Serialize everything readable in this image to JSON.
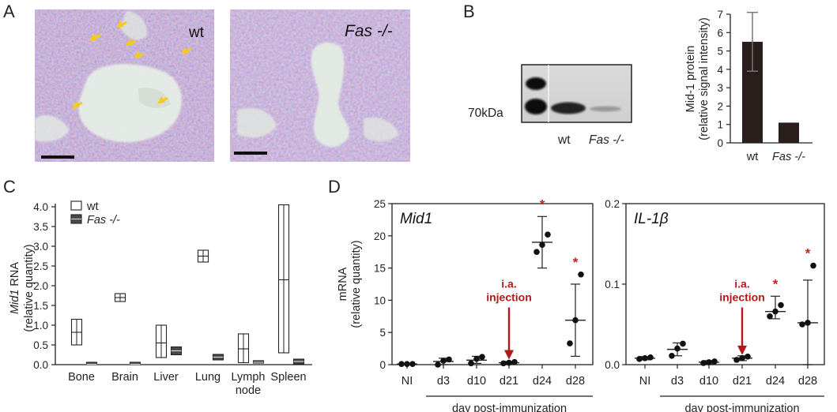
{
  "panels": {
    "A": {
      "letter": "A",
      "label_wt": "wt",
      "label_fas": "Fas -/-"
    },
    "B": {
      "letter": "B",
      "band_label": "70kDa",
      "lane_wt": "wt",
      "lane_fas": "Fas -/-"
    },
    "C": {
      "letter": "C"
    },
    "D": {
      "letter": "D"
    }
  },
  "colors": {
    "bar": "#2a1e1c",
    "box_dark": "#4a4a4a",
    "annot_red": "#b01a1a",
    "arrow_yellow": "#f5cb1a",
    "tissue_purple": "#9b86b8"
  },
  "chart_data": [
    {
      "id": "B",
      "type": "bar",
      "categories": [
        "wt",
        "Fas -/-"
      ],
      "values": [
        5.5,
        1.1
      ],
      "error_low": [
        3.9,
        null
      ],
      "error_high": [
        7.1,
        null
      ],
      "ylabel_line1": "Mid-1 protein",
      "ylabel_line2": "(relative signal intensity)",
      "ylim": [
        0,
        7
      ],
      "yticks": [
        "0",
        "1",
        "2",
        "3",
        "4",
        "5",
        "6",
        "7"
      ]
    },
    {
      "id": "C",
      "type": "box",
      "categories": [
        "Bone",
        "Brain",
        "Liver",
        "Lung",
        "Lymph\nnode",
        "Spleen"
      ],
      "category_labels": [
        "Bone",
        "Brain",
        "Liver",
        "Lung",
        "Lymph",
        "Spleen"
      ],
      "category_label2": "node",
      "ylabel_italic": "Mid1",
      "ylabel_rest": " RNA",
      "ylabel_line2": "(relative quantity)",
      "ylim": [
        0,
        4.0
      ],
      "yticks": [
        "0.0",
        "0.5",
        "1.0",
        "1.5",
        "2.0",
        "2.5",
        "3.0",
        "3.5",
        "4.0"
      ],
      "series": [
        {
          "name": "wt",
          "boxes": [
            {
              "q1": 0.5,
              "median": 0.82,
              "q3": 1.15
            },
            {
              "q1": 1.6,
              "median": 1.7,
              "q3": 1.8
            },
            {
              "q1": 0.18,
              "median": 0.55,
              "q3": 1.0
            },
            {
              "q1": 2.6,
              "median": 2.75,
              "q3": 2.9
            },
            {
              "q1": 0.05,
              "median": 0.4,
              "q3": 0.78
            },
            {
              "q1": 0.3,
              "median": 2.15,
              "q3": 4.05
            }
          ]
        },
        {
          "name": "Fas -/-",
          "boxes": [
            {
              "q1": 0.0,
              "median": 0.01,
              "q3": 0.02
            },
            {
              "q1": 0.0,
              "median": 0.01,
              "q3": 0.04
            },
            {
              "q1": 0.25,
              "median": 0.35,
              "q3": 0.45
            },
            {
              "q1": 0.12,
              "median": 0.19,
              "q3": 0.26
            },
            {
              "q1": 0.04,
              "median": 0.06,
              "q3": 0.08
            },
            {
              "q1": 0.02,
              "median": 0.08,
              "q3": 0.14
            }
          ]
        }
      ],
      "legend": [
        "wt",
        "Fas -/-"
      ],
      "legend_position": "top-left"
    },
    {
      "id": "D1",
      "type": "scatter",
      "title": "Mid1",
      "categories": [
        "NI",
        "d3",
        "d10",
        "d21",
        "d24",
        "d28"
      ],
      "ylabel_line1": "mRNA",
      "ylabel_line2": "(relative quantity)",
      "xlabel": "day post-immunization",
      "ylim": [
        0,
        25
      ],
      "yticks": [
        "0",
        "5",
        "10",
        "15",
        "20",
        "25"
      ],
      "points": [
        [
          0.1,
          0.1,
          0.1
        ],
        [
          0.0,
          0.6,
          0.8
        ],
        [
          0.2,
          0.9,
          1.2
        ],
        [
          0.2,
          0.3,
          0.4
        ],
        [
          17.5,
          18.6,
          20.2
        ],
        [
          3.3,
          6.9,
          14.0
        ]
      ],
      "mean": [
        0.1,
        0.5,
        0.7,
        0.3,
        19.0,
        6.9
      ],
      "sd_low": [
        0.0,
        0.0,
        0.2,
        0.1,
        15.0,
        1.3
      ],
      "sd_high": [
        0.2,
        1.0,
        1.3,
        0.5,
        23.0,
        12.5
      ],
      "significant": [
        false,
        false,
        false,
        false,
        true,
        true
      ],
      "star": "*",
      "annotation_line1": "i.a.",
      "annotation_line2": "injection",
      "annotation_at": "d21"
    },
    {
      "id": "D2",
      "type": "scatter",
      "title": "IL-1β",
      "categories": [
        "NI",
        "d3",
        "d10",
        "d21",
        "d24",
        "d28"
      ],
      "xlabel": "day post-immunization",
      "ylim": [
        0,
        0.2
      ],
      "yticks": [
        "0.0",
        "0.1",
        "0.2"
      ],
      "points": [
        [
          0.007,
          0.008,
          0.009
        ],
        [
          0.011,
          0.02,
          0.026
        ],
        [
          0.002,
          0.003,
          0.004
        ],
        [
          0.006,
          0.008,
          0.01
        ],
        [
          0.06,
          0.066,
          0.074
        ],
        [
          0.05,
          0.052,
          0.123
        ]
      ],
      "mean": [
        0.008,
        0.019,
        0.003,
        0.008,
        0.066,
        0.052
      ],
      "sd_low": [
        0.006,
        0.011,
        0.001,
        0.005,
        0.057,
        0.0
      ],
      "sd_high": [
        0.01,
        0.027,
        0.005,
        0.011,
        0.085,
        0.105
      ],
      "significant": [
        false,
        false,
        false,
        false,
        true,
        true
      ],
      "star": "*",
      "annotation_line1": "i.a.",
      "annotation_line2": "injection",
      "annotation_at": "d21"
    }
  ]
}
